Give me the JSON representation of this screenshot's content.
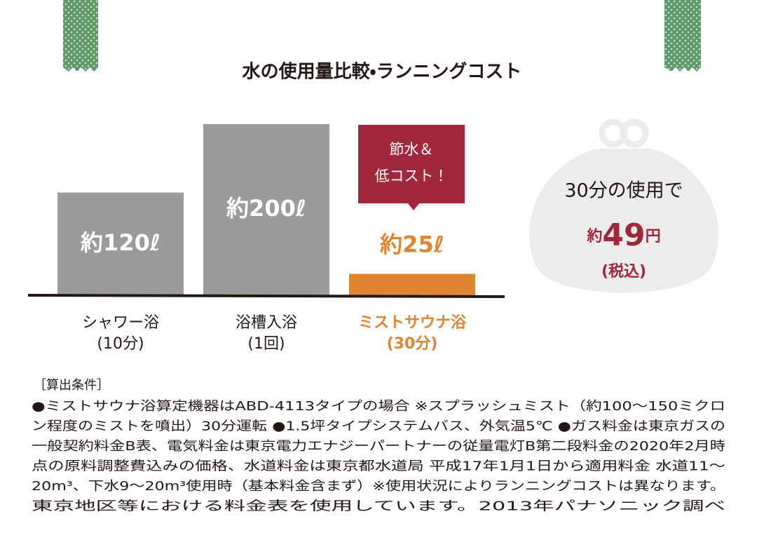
{
  "chart_data": {
    "type": "bar",
    "title": "水の使用量比較・ランニングコスト",
    "categories": [
      "シャワー浴",
      "浴槽入浴",
      "ミストサウナ浴"
    ],
    "category_notes": [
      "(10分)",
      "(1回)",
      "(30分)"
    ],
    "values": [
      120,
      200,
      25
    ],
    "value_labels": [
      "約120ℓ",
      "約200ℓ",
      "約25ℓ"
    ],
    "colors": [
      "#9b9b9b",
      "#9b9b9b",
      "#df8530"
    ],
    "callout": [
      "節水＆",
      "低コスト！"
    ],
    "cost": {
      "lead": "30分の使用で",
      "prefix": "約",
      "value": 49,
      "unit": "円",
      "note": "(税込)"
    }
  },
  "footnote": {
    "heading": "［算出条件］",
    "lines": [
      "●ミストサウナ浴算定機器はABD-4113タイプの場合 ※スプラッシュミスト（約100～150ミクロ",
      "ン程度のミストを噴出）30分運転 ●1.5坪タイプシステムバス、外気温5℃ ●ガス料金は東京ガスの",
      "一般契約料金B表、電気料金は東京電力エナジーパートナーの従量電灯B第二段料金の2020年2月時",
      "点の原料調整費込みの価格、水道料金は東京都水道局 平成17年1月1日から適用料金 水道11～",
      "20m³、下水9～20m³使用時（基本料金含まず）※使用状況によりランニングコストは異なります。",
      "東京地区等における料金表を使用しています。2013年パナソニック調べ"
    ]
  }
}
